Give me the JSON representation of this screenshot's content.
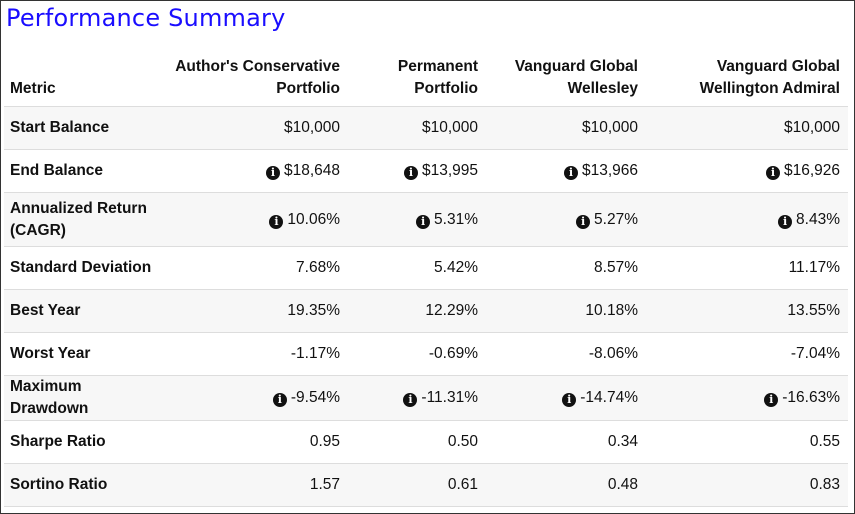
{
  "title": "Performance Summary",
  "columns": [
    "Metric",
    "Author's Conservative Portfolio",
    "Permanent Portfolio",
    "Vanguard Global Wellesley",
    "Vanguard Global Wellington Admiral"
  ],
  "rows": [
    {
      "metric": "Start Balance",
      "info": false,
      "values": [
        "$10,000",
        "$10,000",
        "$10,000",
        "$10,000"
      ]
    },
    {
      "metric": "End Balance",
      "info": true,
      "values": [
        "$18,648",
        "$13,995",
        "$13,966",
        "$16,926"
      ]
    },
    {
      "metric": "Annualized Return (CAGR)",
      "info": true,
      "values": [
        "10.06%",
        "5.31%",
        "5.27%",
        "8.43%"
      ]
    },
    {
      "metric": "Standard Deviation",
      "info": false,
      "values": [
        "7.68%",
        "5.42%",
        "8.57%",
        "11.17%"
      ]
    },
    {
      "metric": "Best Year",
      "info": false,
      "values": [
        "19.35%",
        "12.29%",
        "10.18%",
        "13.55%"
      ]
    },
    {
      "metric": "Worst Year",
      "info": false,
      "values": [
        "-1.17%",
        "-0.69%",
        "-8.06%",
        "-7.04%"
      ]
    },
    {
      "metric": "Maximum Drawdown",
      "info": true,
      "values": [
        "-9.54%",
        "-11.31%",
        "-14.74%",
        "-16.63%"
      ]
    },
    {
      "metric": "Sharpe Ratio",
      "info": false,
      "values": [
        "0.95",
        "0.50",
        "0.34",
        "0.55"
      ]
    },
    {
      "metric": "Sortino Ratio",
      "info": false,
      "values": [
        "1.57",
        "0.61",
        "0.48",
        "0.83"
      ]
    }
  ]
}
